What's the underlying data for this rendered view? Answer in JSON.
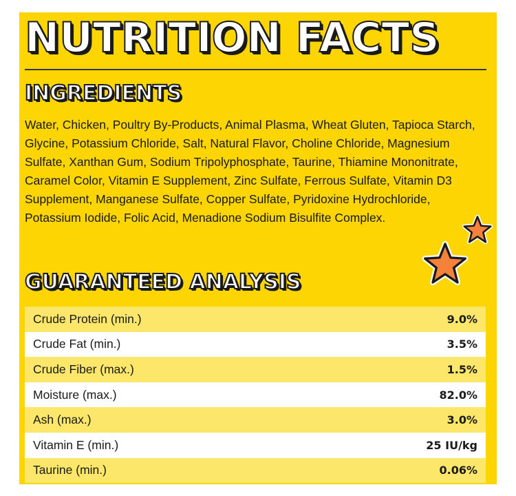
{
  "title": "NUTRITION FACTS",
  "ingredients": {
    "heading": "INGREDIENTS",
    "text": "Water, Chicken, Poultry By-Products, Animal Plasma, Wheat Gluten, Tapioca Starch, Glycine, Potassium Chloride, Salt, Natural Flavor, Choline Chloride, Magnesium Sulfate, Xanthan Gum, Sodium Tripolyphosphate, Taurine, Thiamine Mononitrate, Caramel Color, Vitamin E Supplement, Zinc Sulfate, Ferrous Sulfate, Vitamin D3 Supplement, Manganese Sulfate, Copper Sulfate, Pyridoxine Hydrochloride, Potassium Iodide, Folic Acid, Menadione Sodium Bisulfite Complex."
  },
  "analysis": {
    "heading": "GUARANTEED ANALYSIS",
    "rows": [
      {
        "label": "Crude Protein (min.)",
        "value": "9.0%"
      },
      {
        "label": "Crude Fat (min.)",
        "value": "3.5%"
      },
      {
        "label": "Crude Fiber (max.)",
        "value": "1.5%"
      },
      {
        "label": "Moisture (max.)",
        "value": "82.0%"
      },
      {
        "label": "Ash (max.)",
        "value": "3.0%"
      },
      {
        "label": "Vitamin E (min.)",
        "value": "25 IU/kg"
      },
      {
        "label": "Taurine (min.)",
        "value": "0.06%"
      }
    ]
  },
  "colors": {
    "background": "#FCD503",
    "row_alt": "#FDE76A",
    "star": "#F4823A"
  },
  "icons": [
    "star-icon",
    "star-icon"
  ]
}
